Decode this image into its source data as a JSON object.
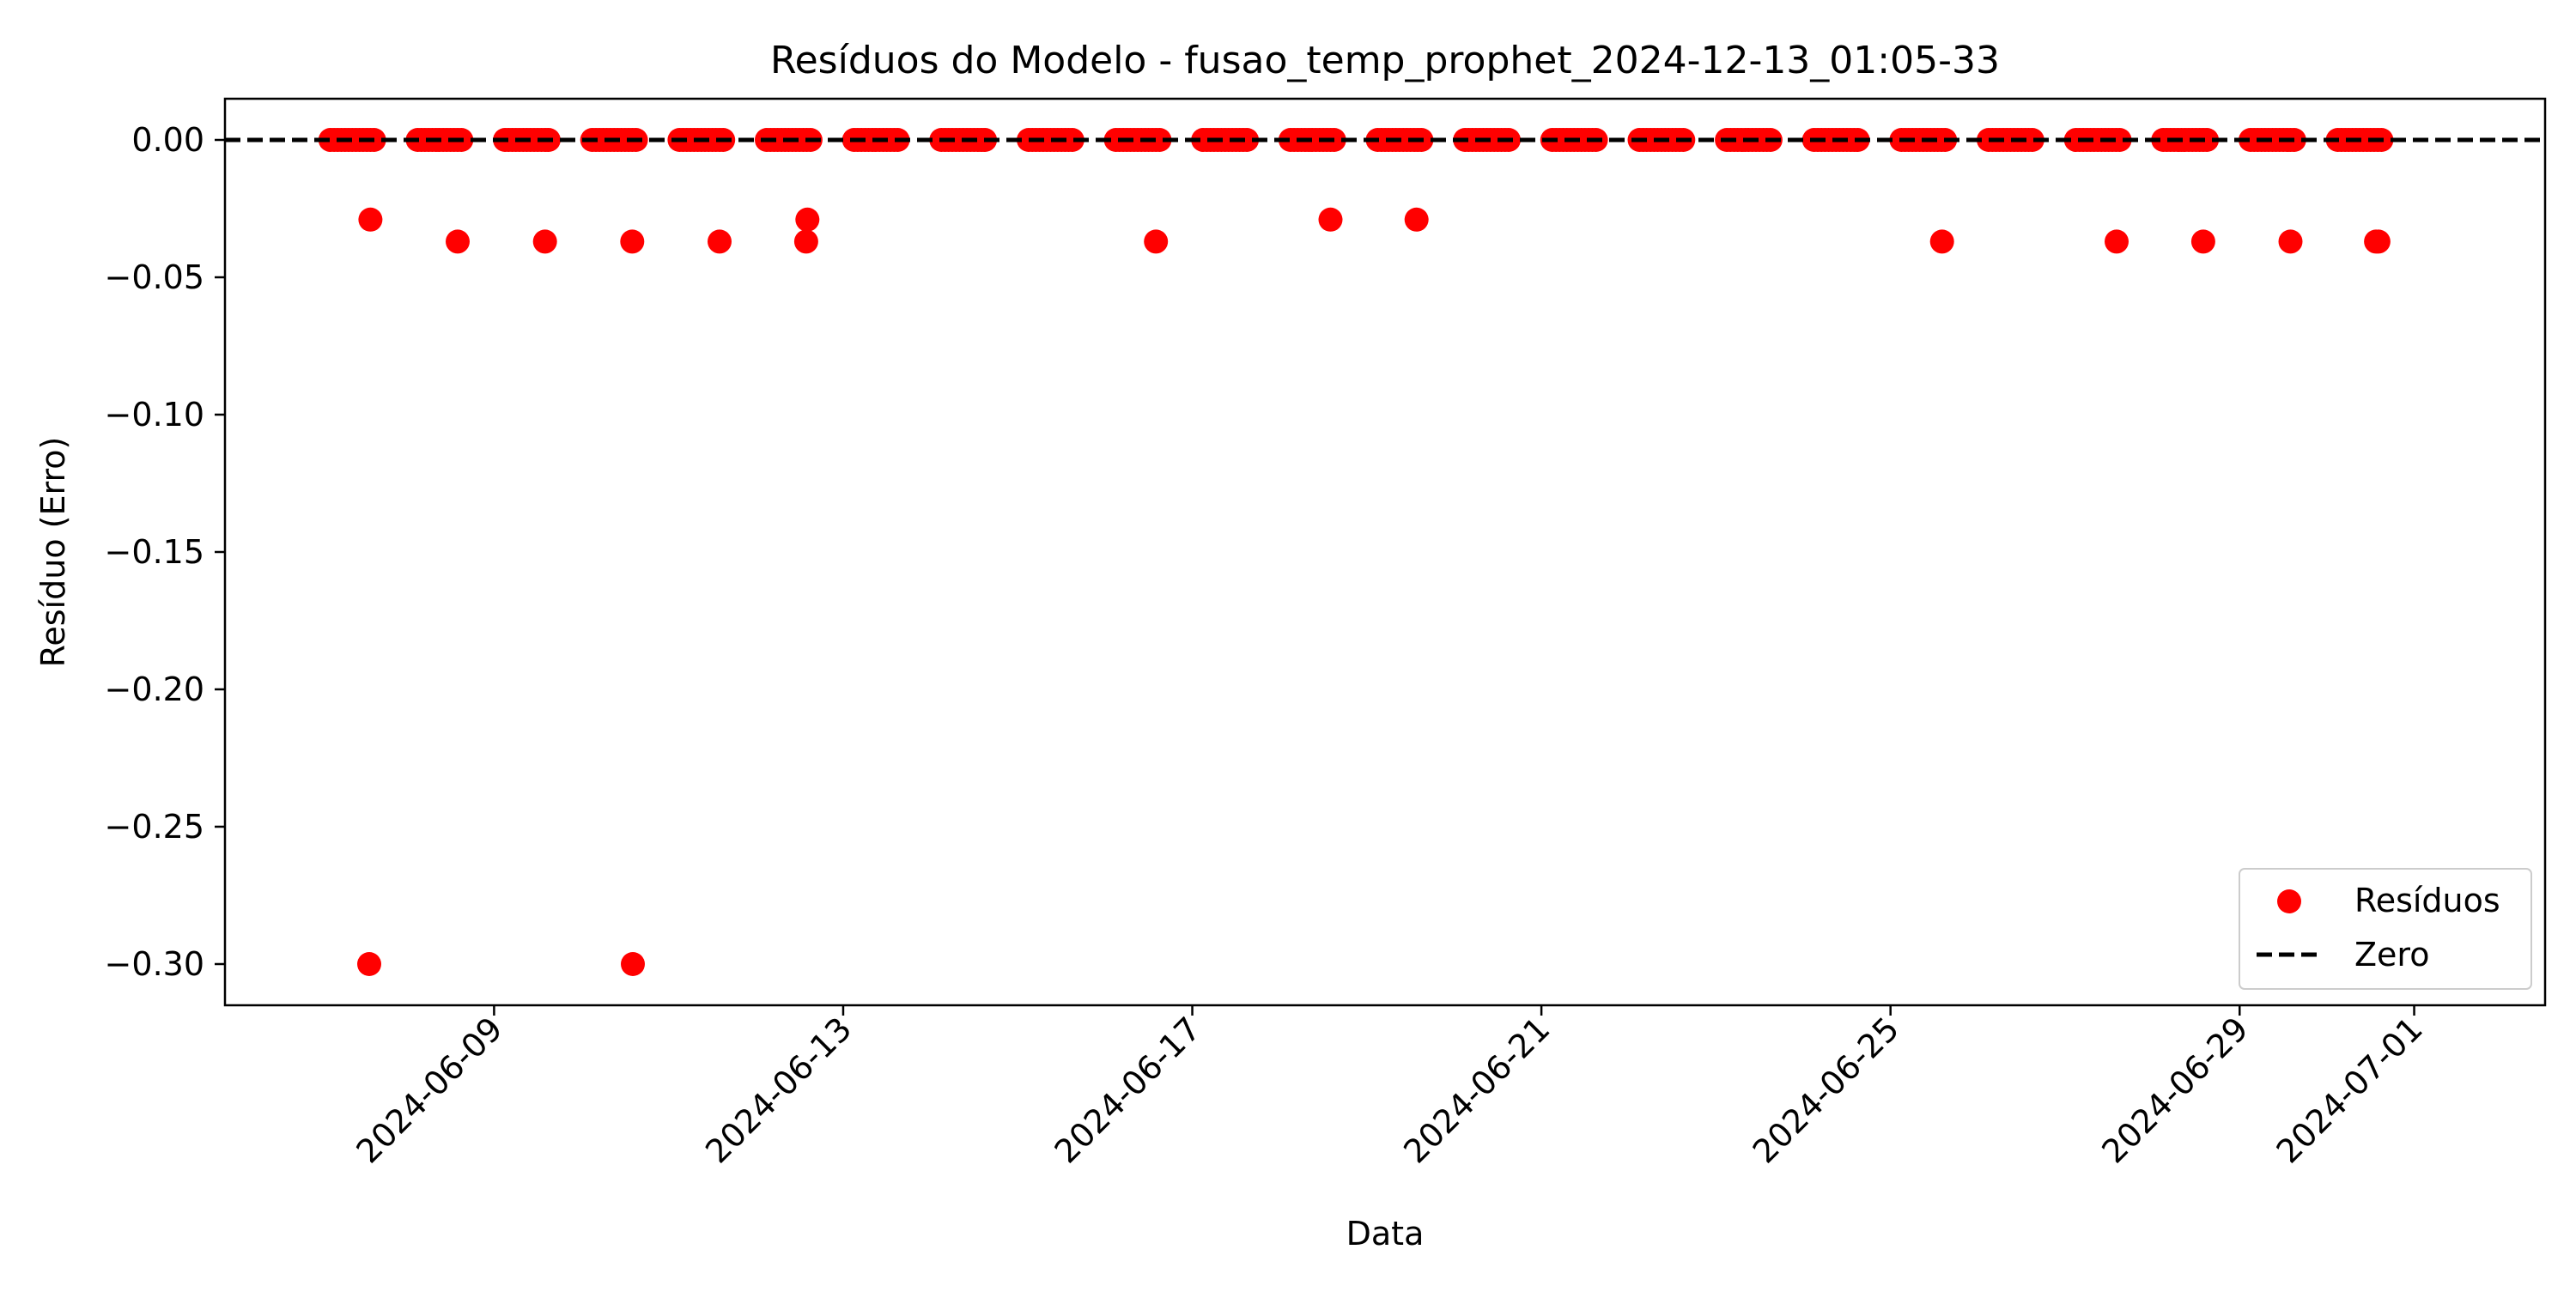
{
  "chart_data": {
    "type": "scatter",
    "title": "Resíduos do Modelo - fusao_temp_prophet_2024-12-13_01:05-33",
    "xlabel": "Data",
    "ylabel": "Resíduo (Erro)",
    "x_is_date": true,
    "xlim": [
      "2024-06-05T22:00",
      "2024-07-02T12:00"
    ],
    "ylim": [
      -0.315,
      0.015
    ],
    "x_ticks": [
      "2024-06-09",
      "2024-06-13",
      "2024-06-17",
      "2024-06-21",
      "2024-06-25",
      "2024-06-29",
      "2024-07-01"
    ],
    "y_ticks": [
      0.0,
      -0.05,
      -0.1,
      -0.15,
      -0.2,
      -0.25,
      -0.3
    ],
    "y_tick_labels": [
      "0.00",
      "−0.05",
      "−0.10",
      "−0.15",
      "−0.20",
      "−0.25",
      "−0.30"
    ],
    "zero_line": {
      "y": 0,
      "style": "dashed",
      "color": "#000000",
      "label": "Zero"
    },
    "legend": {
      "position": "lower-right",
      "entries": [
        "Resíduos",
        "Zero"
      ]
    },
    "series": [
      {
        "name": "Resíduos",
        "color": "#ff0000",
        "zero_blocks": [
          {
            "day": "2024-06-07",
            "start_hour": 3,
            "end_hour": 15
          },
          {
            "day": "2024-06-08",
            "start_hour": 3,
            "end_hour": 15
          },
          {
            "day": "2024-06-09",
            "start_hour": 3,
            "end_hour": 15
          },
          {
            "day": "2024-06-10",
            "start_hour": 3,
            "end_hour": 15
          },
          {
            "day": "2024-06-11",
            "start_hour": 3,
            "end_hour": 15
          },
          {
            "day": "2024-06-12",
            "start_hour": 3,
            "end_hour": 15
          },
          {
            "day": "2024-06-13",
            "start_hour": 3,
            "end_hour": 15
          },
          {
            "day": "2024-06-14",
            "start_hour": 3,
            "end_hour": 15
          },
          {
            "day": "2024-06-15",
            "start_hour": 3,
            "end_hour": 15
          },
          {
            "day": "2024-06-16",
            "start_hour": 3,
            "end_hour": 15
          },
          {
            "day": "2024-06-17",
            "start_hour": 3,
            "end_hour": 15
          },
          {
            "day": "2024-06-18",
            "start_hour": 3,
            "end_hour": 15
          },
          {
            "day": "2024-06-19",
            "start_hour": 3,
            "end_hour": 15
          },
          {
            "day": "2024-06-20",
            "start_hour": 3,
            "end_hour": 15
          },
          {
            "day": "2024-06-21",
            "start_hour": 3,
            "end_hour": 15
          },
          {
            "day": "2024-06-22",
            "start_hour": 3,
            "end_hour": 15
          },
          {
            "day": "2024-06-23",
            "start_hour": 3,
            "end_hour": 15
          },
          {
            "day": "2024-06-24",
            "start_hour": 3,
            "end_hour": 15
          },
          {
            "day": "2024-06-25",
            "start_hour": 3,
            "end_hour": 15
          },
          {
            "day": "2024-06-26",
            "start_hour": 3,
            "end_hour": 15
          },
          {
            "day": "2024-06-27",
            "start_hour": 3,
            "end_hour": 15
          },
          {
            "day": "2024-06-28",
            "start_hour": 3,
            "end_hour": 15
          },
          {
            "day": "2024-06-29",
            "start_hour": 3,
            "end_hour": 15
          },
          {
            "day": "2024-06-30",
            "start_hour": 3,
            "end_hour": 15
          }
        ],
        "outliers": [
          {
            "x": "2024-06-07T14:00",
            "y": -0.029
          },
          {
            "x": "2024-06-07T13:40",
            "y": -0.3
          },
          {
            "x": "2024-06-08T14:00",
            "y": -0.037
          },
          {
            "x": "2024-06-09T14:00",
            "y": -0.037
          },
          {
            "x": "2024-06-10T14:00",
            "y": -0.037
          },
          {
            "x": "2024-06-10T14:10",
            "y": -0.3
          },
          {
            "x": "2024-06-11T14:00",
            "y": -0.037
          },
          {
            "x": "2024-06-12T13:50",
            "y": -0.037
          },
          {
            "x": "2024-06-12T14:10",
            "y": -0.029
          },
          {
            "x": "2024-06-16T14:00",
            "y": -0.037
          },
          {
            "x": "2024-06-18T14:00",
            "y": -0.029
          },
          {
            "x": "2024-06-19T13:40",
            "y": -0.029
          },
          {
            "x": "2024-06-25T14:10",
            "y": -0.037
          },
          {
            "x": "2024-06-27T14:10",
            "y": -0.037
          },
          {
            "x": "2024-06-28T14:00",
            "y": -0.037
          },
          {
            "x": "2024-06-29T14:00",
            "y": -0.037
          },
          {
            "x": "2024-06-30T13:30",
            "y": -0.037
          },
          {
            "x": "2024-06-30T14:10",
            "y": -0.037
          }
        ]
      }
    ]
  }
}
